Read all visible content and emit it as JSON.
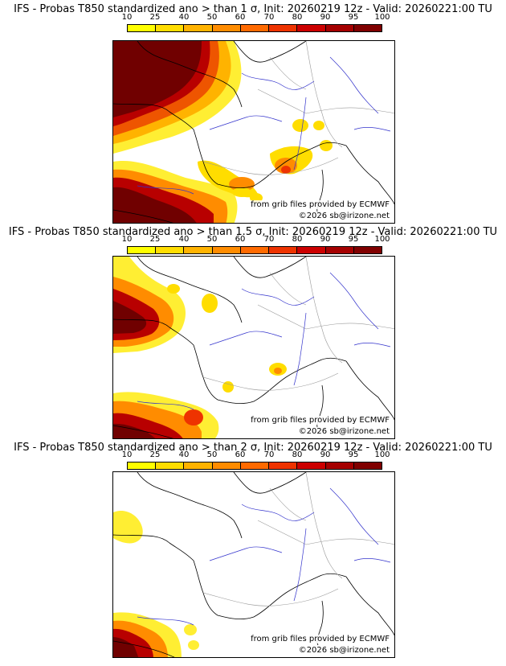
{
  "legend": {
    "ticks": [
      "10",
      "25",
      "40",
      "50",
      "60",
      "70",
      "80",
      "90",
      "95",
      "100"
    ],
    "colors": [
      "#ffff00",
      "#ffdd00",
      "#ffb300",
      "#ff8c00",
      "#ff6a00",
      "#ee3300",
      "#cc0000",
      "#a50000",
      "#800000",
      "#4f0000"
    ]
  },
  "panels": [
    {
      "title": "IFS - Probas T850  standardized ano > than 1 σ, Init: 20260219 12z - Valid: 20260221:00 TU",
      "credit_source": "from grib files provided by ECMWF",
      "credit_copyright": "©2026 sb@irizone.net"
    },
    {
      "title": "IFS - Probas T850  standardized ano > than 1.5 σ, Init: 20260219 12z - Valid: 20260221:00 TU",
      "credit_source": "from grib files provided by ECMWF",
      "credit_copyright": "©2026 sb@irizone.net"
    },
    {
      "title": "IFS - Probas T850  standardized ano > than 2 σ, Init: 20260219 12z - Valid: 20260221:00 TU",
      "credit_source": "from grib files provided by ECMWF",
      "credit_copyright": "©2026 sb@irizone.net"
    }
  ]
}
